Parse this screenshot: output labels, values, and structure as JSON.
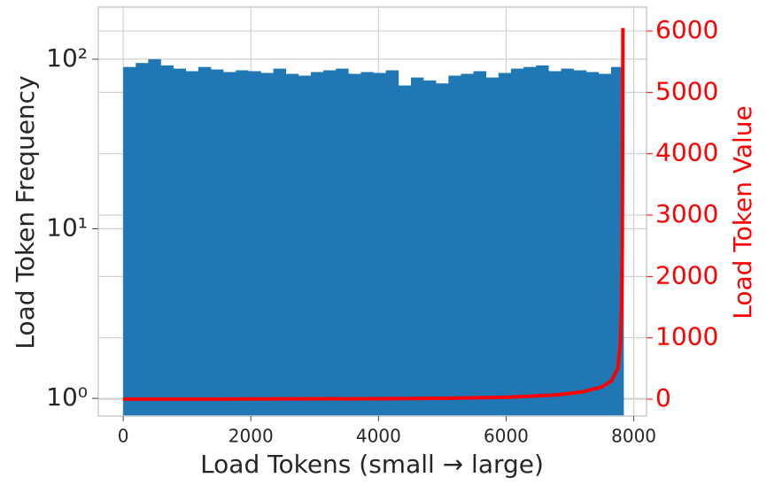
{
  "chart_data": {
    "type": "histogram",
    "xlabel": "Load Tokens (small → large)",
    "ylabel": "Load Token Frequency",
    "y2label": "Load Token Value",
    "bins": [
      0,
      196,
      392,
      588,
      784,
      980,
      1176,
      1372,
      1568,
      1764,
      1960,
      2156,
      2352,
      2548,
      2744,
      2940,
      3136,
      3332,
      3528,
      3724,
      3920,
      4116,
      4312,
      4508,
      4704,
      4900,
      5096,
      5292,
      5488,
      5684,
      5880,
      6076,
      6272,
      6468,
      6664,
      6860,
      7056,
      7252,
      7448,
      7644,
      7840
    ],
    "values": [
      90,
      95,
      100,
      92,
      88,
      85,
      90,
      87,
      84,
      86,
      85,
      83,
      88,
      82,
      80,
      84,
      86,
      88,
      82,
      84,
      83,
      86,
      70,
      78,
      75,
      72,
      80,
      82,
      85,
      78,
      83,
      88,
      90,
      92,
      85,
      88,
      86,
      84,
      82,
      90
    ],
    "color": "#1f77b4",
    "overlay": {
      "type": "line",
      "axis": "y2",
      "color": "#ff0000",
      "x": [
        0,
        2000,
        4000,
        5000,
        6000,
        6800,
        7200,
        7500,
        7650,
        7750,
        7790,
        7810,
        7820,
        7825,
        7830
      ],
      "values": [
        1,
        3,
        8,
        15,
        30,
        70,
        120,
        200,
        300,
        500,
        900,
        1500,
        2500,
        4000,
        6050
      ]
    },
    "xlim": [
      -390,
      8200
    ],
    "xticks": [
      0,
      2000,
      4000,
      6000,
      8000
    ],
    "ylim": [
      0.787,
      203
    ],
    "log_y": true,
    "yticks": [
      {
        "value": 1,
        "label": "10⁰"
      },
      {
        "value": 10,
        "label": "10¹"
      },
      {
        "value": 100,
        "label": "10²"
      }
    ],
    "y2lim": [
      -274,
      6390
    ],
    "y2ticks": [
      0,
      1000,
      2000,
      3000,
      4000,
      5000,
      6000
    ],
    "grid": true
  }
}
